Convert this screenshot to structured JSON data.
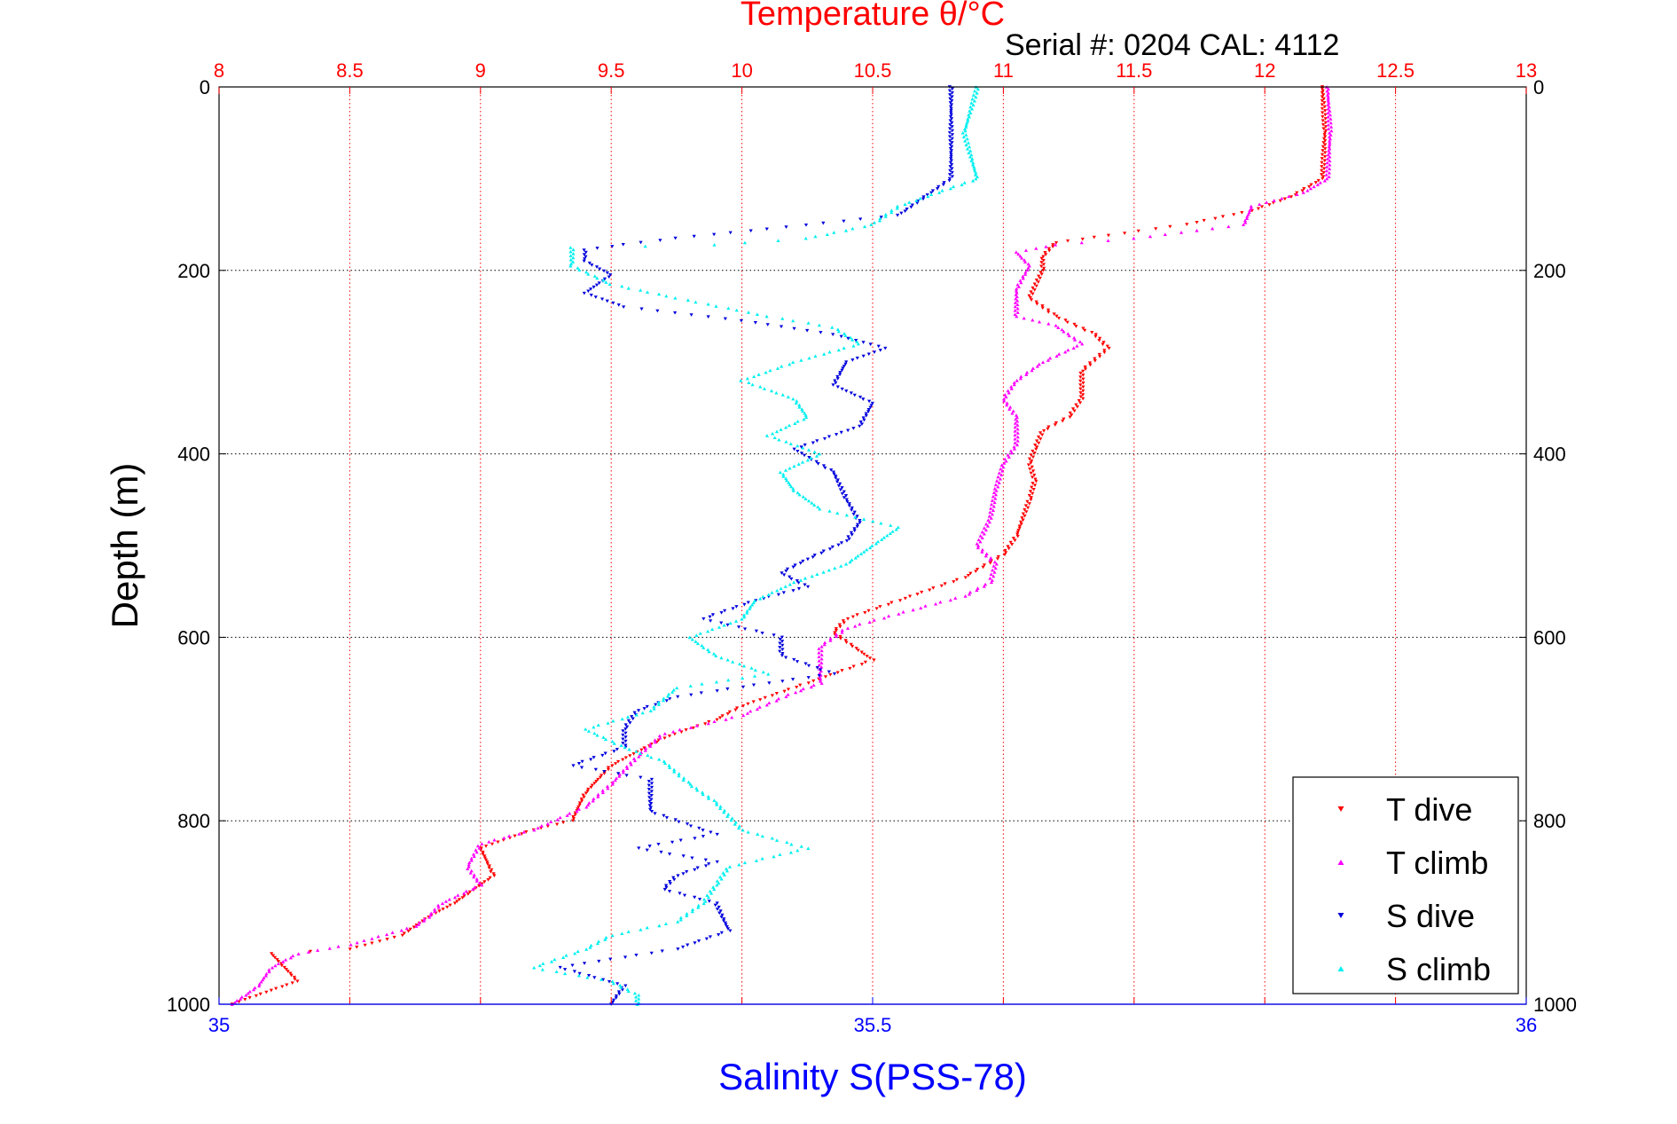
{
  "chart_data": {
    "type": "scatter",
    "title": "Temperature θ/°C",
    "subtitle": "Serial #: 0204  CAL: 4112",
    "ylabel": "Depth (m)",
    "xlabel_bottom": "Salinity S(PSS-78)",
    "xlabel_top": "Temperature θ/°C",
    "ylim": [
      1000,
      0
    ],
    "x_top_lim": [
      8,
      13
    ],
    "x_bottom_lim": [
      35,
      36
    ],
    "y_ticks": [
      "0",
      "200",
      "400",
      "600",
      "800",
      "1000"
    ],
    "x_top_ticks": [
      "8",
      "8.5",
      "9",
      "9.5",
      "10",
      "10.5",
      "11",
      "11.5",
      "12",
      "12.5",
      "13"
    ],
    "x_bottom_ticks": [
      "35",
      "35.5",
      "36"
    ],
    "grid": true,
    "legend_position": "bottom-right",
    "colors": {
      "title": "#ff0000",
      "top_axis": "#ff0000",
      "bottom_axis": "#0000ff",
      "grid_vertical": "#ff0000",
      "grid_horizontal": "#000000",
      "axes": "#000000"
    },
    "series": [
      {
        "name": "T dive",
        "axis": "temperature",
        "color": "#ff0000",
        "marker": "triangle-down",
        "points": [
          [
            12.22,
            0
          ],
          [
            12.23,
            50
          ],
          [
            12.22,
            100
          ],
          [
            12.1,
            120
          ],
          [
            11.95,
            135
          ],
          [
            11.7,
            150
          ],
          [
            11.4,
            162
          ],
          [
            11.2,
            170
          ],
          [
            11.15,
            185
          ],
          [
            11.15,
            200
          ],
          [
            11.1,
            230
          ],
          [
            11.2,
            250
          ],
          [
            11.35,
            270
          ],
          [
            11.4,
            285
          ],
          [
            11.3,
            310
          ],
          [
            11.3,
            340
          ],
          [
            11.25,
            360
          ],
          [
            11.15,
            375
          ],
          [
            11.12,
            395
          ],
          [
            11.1,
            410
          ],
          [
            11.12,
            430
          ],
          [
            11.1,
            450
          ],
          [
            11.05,
            490
          ],
          [
            11.0,
            510
          ],
          [
            10.85,
            535
          ],
          [
            10.6,
            560
          ],
          [
            10.4,
            580
          ],
          [
            10.35,
            595
          ],
          [
            10.5,
            625
          ],
          [
            10.25,
            650
          ],
          [
            10.0,
            675
          ],
          [
            9.9,
            690
          ],
          [
            9.7,
            710
          ],
          [
            9.5,
            740
          ],
          [
            9.4,
            770
          ],
          [
            9.35,
            800
          ],
          [
            9.2,
            810
          ],
          [
            9.0,
            830
          ],
          [
            9.05,
            860
          ],
          [
            8.95,
            880
          ],
          [
            8.9,
            890
          ],
          [
            8.8,
            905
          ],
          [
            8.7,
            925
          ],
          [
            8.5,
            940
          ],
          [
            8.2,
            945
          ],
          [
            8.25,
            960
          ],
          [
            8.3,
            975
          ],
          [
            8.2,
            985
          ],
          [
            8.1,
            995
          ],
          [
            8.05,
            1000
          ]
        ]
      },
      {
        "name": "T climb",
        "axis": "temperature",
        "color": "#ff00ff",
        "marker": "triangle-up",
        "points": [
          [
            12.24,
            0
          ],
          [
            12.25,
            50
          ],
          [
            12.24,
            100
          ],
          [
            12.15,
            115
          ],
          [
            11.95,
            130
          ],
          [
            11.92,
            150
          ],
          [
            11.5,
            165
          ],
          [
            11.2,
            172
          ],
          [
            11.05,
            180
          ],
          [
            11.1,
            195
          ],
          [
            11.05,
            220
          ],
          [
            11.05,
            250
          ],
          [
            11.2,
            260
          ],
          [
            11.3,
            280
          ],
          [
            11.15,
            300
          ],
          [
            11.05,
            320
          ],
          [
            11.0,
            340
          ],
          [
            11.05,
            360
          ],
          [
            11.05,
            390
          ],
          [
            11.0,
            410
          ],
          [
            10.97,
            440
          ],
          [
            10.95,
            470
          ],
          [
            10.9,
            500
          ],
          [
            10.97,
            520
          ],
          [
            10.95,
            540
          ],
          [
            10.85,
            555
          ],
          [
            10.65,
            570
          ],
          [
            10.4,
            590
          ],
          [
            10.3,
            610
          ],
          [
            10.3,
            650
          ],
          [
            10.2,
            660
          ],
          [
            10.0,
            685
          ],
          [
            9.7,
            705
          ],
          [
            9.6,
            730
          ],
          [
            9.5,
            760
          ],
          [
            9.4,
            785
          ],
          [
            9.2,
            810
          ],
          [
            9.0,
            825
          ],
          [
            8.95,
            850
          ],
          [
            9.0,
            870
          ],
          [
            8.85,
            890
          ],
          [
            8.8,
            905
          ],
          [
            8.75,
            915
          ],
          [
            8.5,
            935
          ],
          [
            8.3,
            945
          ],
          [
            8.2,
            960
          ],
          [
            8.15,
            980
          ],
          [
            8.1,
            990
          ],
          [
            8.05,
            1000
          ]
        ]
      },
      {
        "name": "S dive",
        "axis": "salinity",
        "color": "#0000dd",
        "marker": "triangle-down",
        "points": [
          [
            35.56,
            0
          ],
          [
            35.56,
            50
          ],
          [
            35.56,
            100
          ],
          [
            35.54,
            120
          ],
          [
            35.52,
            140
          ],
          [
            35.42,
            155
          ],
          [
            35.35,
            165
          ],
          [
            35.31,
            172
          ],
          [
            35.28,
            178
          ],
          [
            35.28,
            190
          ],
          [
            35.3,
            205
          ],
          [
            35.28,
            225
          ],
          [
            35.31,
            240
          ],
          [
            35.4,
            255
          ],
          [
            35.47,
            270
          ],
          [
            35.51,
            285
          ],
          [
            35.48,
            300
          ],
          [
            35.47,
            325
          ],
          [
            35.5,
            345
          ],
          [
            35.49,
            370
          ],
          [
            35.44,
            395
          ],
          [
            35.47,
            420
          ],
          [
            35.48,
            450
          ],
          [
            35.49,
            475
          ],
          [
            35.48,
            495
          ],
          [
            35.45,
            515
          ],
          [
            35.43,
            530
          ],
          [
            35.45,
            545
          ],
          [
            35.41,
            560
          ],
          [
            35.37,
            580
          ],
          [
            35.43,
            600
          ],
          [
            35.43,
            620
          ],
          [
            35.47,
            640
          ],
          [
            35.42,
            650
          ],
          [
            35.35,
            665
          ],
          [
            35.32,
            680
          ],
          [
            35.31,
            700
          ],
          [
            35.31,
            720
          ],
          [
            35.27,
            740
          ],
          [
            35.33,
            755
          ],
          [
            35.33,
            790
          ],
          [
            35.38,
            815
          ],
          [
            35.32,
            830
          ],
          [
            35.38,
            845
          ],
          [
            35.35,
            860
          ],
          [
            35.34,
            875
          ],
          [
            35.38,
            890
          ],
          [
            35.39,
            920
          ],
          [
            35.35,
            940
          ],
          [
            35.26,
            960
          ],
          [
            35.31,
            980
          ],
          [
            35.3,
            1000
          ]
        ]
      },
      {
        "name": "S climb",
        "axis": "salinity",
        "color": "#00f0f0",
        "marker": "triangle-up",
        "points": [
          [
            35.58,
            0
          ],
          [
            35.57,
            50
          ],
          [
            35.58,
            100
          ],
          [
            35.52,
            130
          ],
          [
            35.5,
            150
          ],
          [
            35.45,
            165
          ],
          [
            35.38,
            172
          ],
          [
            35.27,
            175
          ],
          [
            35.27,
            195
          ],
          [
            35.3,
            215
          ],
          [
            35.35,
            230
          ],
          [
            35.42,
            250
          ],
          [
            35.47,
            262
          ],
          [
            35.49,
            280
          ],
          [
            35.44,
            300
          ],
          [
            35.4,
            320
          ],
          [
            35.44,
            340
          ],
          [
            35.45,
            360
          ],
          [
            35.42,
            380
          ],
          [
            35.46,
            400
          ],
          [
            35.43,
            420
          ],
          [
            35.44,
            440
          ],
          [
            35.46,
            460
          ],
          [
            35.52,
            480
          ],
          [
            35.5,
            500
          ],
          [
            35.48,
            520
          ],
          [
            35.44,
            540
          ],
          [
            35.41,
            560
          ],
          [
            35.4,
            580
          ],
          [
            35.36,
            600
          ],
          [
            35.38,
            620
          ],
          [
            35.42,
            640
          ],
          [
            35.35,
            655
          ],
          [
            35.33,
            680
          ],
          [
            35.28,
            700
          ],
          [
            35.31,
            720
          ],
          [
            35.34,
            735
          ],
          [
            35.36,
            760
          ],
          [
            35.38,
            780
          ],
          [
            35.4,
            810
          ],
          [
            35.45,
            830
          ],
          [
            35.39,
            850
          ],
          [
            35.38,
            870
          ],
          [
            35.37,
            890
          ],
          [
            35.35,
            910
          ],
          [
            35.3,
            925
          ],
          [
            35.28,
            940
          ],
          [
            35.24,
            960
          ],
          [
            35.3,
            975
          ],
          [
            35.32,
            990
          ],
          [
            35.32,
            1000
          ]
        ]
      }
    ]
  }
}
